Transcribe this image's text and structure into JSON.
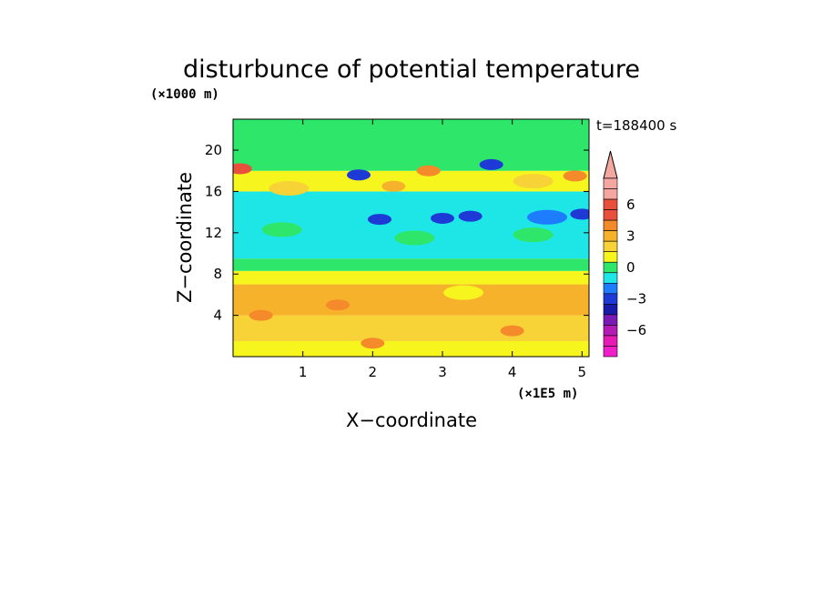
{
  "chart_data": {
    "type": "heatmap",
    "title": "disturbunce of potential temperature",
    "xlabel": "X−coordinate",
    "ylabel": "Z−coordinate",
    "x_unit": "(×1E5 m)",
    "y_unit": "(×1000 m)",
    "time_label": "t=188400 s",
    "x_ticks": [
      "1",
      "2",
      "3",
      "4",
      "5"
    ],
    "x_tick_values": [
      1,
      2,
      3,
      4,
      5
    ],
    "y_ticks": [
      "4",
      "8",
      "12",
      "16",
      "20"
    ],
    "y_tick_values": [
      4,
      8,
      12,
      16,
      20
    ],
    "xlim": [
      0,
      5.1
    ],
    "ylim": [
      0,
      23
    ],
    "colorbar": {
      "tick_labels": [
        "6",
        "3",
        "0",
        "−3",
        "−6"
      ],
      "tick_values": [
        6,
        3,
        0,
        -3,
        -6
      ],
      "levels": [
        {
          "value": 8,
          "color": "#f4a6a0"
        },
        {
          "value": 7,
          "color": "#f4a6a0"
        },
        {
          "value": 6,
          "color": "#e8503c"
        },
        {
          "value": 5,
          "color": "#e8503c"
        },
        {
          "value": 4,
          "color": "#f58a2a"
        },
        {
          "value": 3,
          "color": "#f7b22c"
        },
        {
          "value": 2,
          "color": "#f7d337"
        },
        {
          "value": 1,
          "color": "#f7f51e"
        },
        {
          "value": 0,
          "color": "#2ee66a"
        },
        {
          "value": -1,
          "color": "#1ee6e6"
        },
        {
          "value": -2,
          "color": "#1e7cff"
        },
        {
          "value": -3,
          "color": "#1e3ad6"
        },
        {
          "value": -4,
          "color": "#1a1aa8"
        },
        {
          "value": -5,
          "color": "#7a1ab4"
        },
        {
          "value": -6,
          "color": "#b41ab4"
        },
        {
          "value": -7,
          "color": "#e61ab4"
        },
        {
          "value": -8,
          "color": "#f01ec8"
        }
      ]
    },
    "field_bands": [
      {
        "z_range": [
          0,
          1.5
        ],
        "value": 1
      },
      {
        "z_range": [
          1.5,
          4
        ],
        "value": 2
      },
      {
        "z_range": [
          4,
          7
        ],
        "value": 3
      },
      {
        "z_range": [
          7,
          8.3
        ],
        "value": 1
      },
      {
        "z_range": [
          8.3,
          9.5
        ],
        "value": 0
      },
      {
        "z_range": [
          9.5,
          16
        ],
        "value": -1
      },
      {
        "z_range": [
          16,
          18
        ],
        "value": 1
      },
      {
        "z_range": [
          18,
          23
        ],
        "value": 0
      }
    ],
    "features": [
      {
        "x": 0.1,
        "z": 18.2,
        "value": 5
      },
      {
        "x": 2.8,
        "z": 18.0,
        "value": 4
      },
      {
        "x": 4.9,
        "z": 17.5,
        "value": 4
      },
      {
        "x": 0.8,
        "z": 16.3,
        "value": 2
      },
      {
        "x": 2.3,
        "z": 16.5,
        "value": 3
      },
      {
        "x": 4.3,
        "z": 17.0,
        "value": 2
      },
      {
        "x": 2.1,
        "z": 13.3,
        "value": -3
      },
      {
        "x": 3.0,
        "z": 13.4,
        "value": -3
      },
      {
        "x": 3.4,
        "z": 13.6,
        "value": -3
      },
      {
        "x": 3.7,
        "z": 18.6,
        "value": -3
      },
      {
        "x": 5.0,
        "z": 13.8,
        "value": -3
      },
      {
        "x": 1.8,
        "z": 17.6,
        "value": -3
      },
      {
        "x": 4.5,
        "z": 13.5,
        "value": -2
      },
      {
        "x": 1.5,
        "z": 5.0,
        "value": 4
      },
      {
        "x": 0.4,
        "z": 4.0,
        "value": 4
      },
      {
        "x": 2.0,
        "z": 1.3,
        "value": 4
      },
      {
        "x": 4.0,
        "z": 2.5,
        "value": 4
      },
      {
        "x": 2.6,
        "z": 11.5,
        "value": 0
      },
      {
        "x": 4.3,
        "z": 11.8,
        "value": 0
      },
      {
        "x": 0.7,
        "z": 12.3,
        "value": 0
      },
      {
        "x": 3.3,
        "z": 6.2,
        "value": 1
      }
    ]
  }
}
